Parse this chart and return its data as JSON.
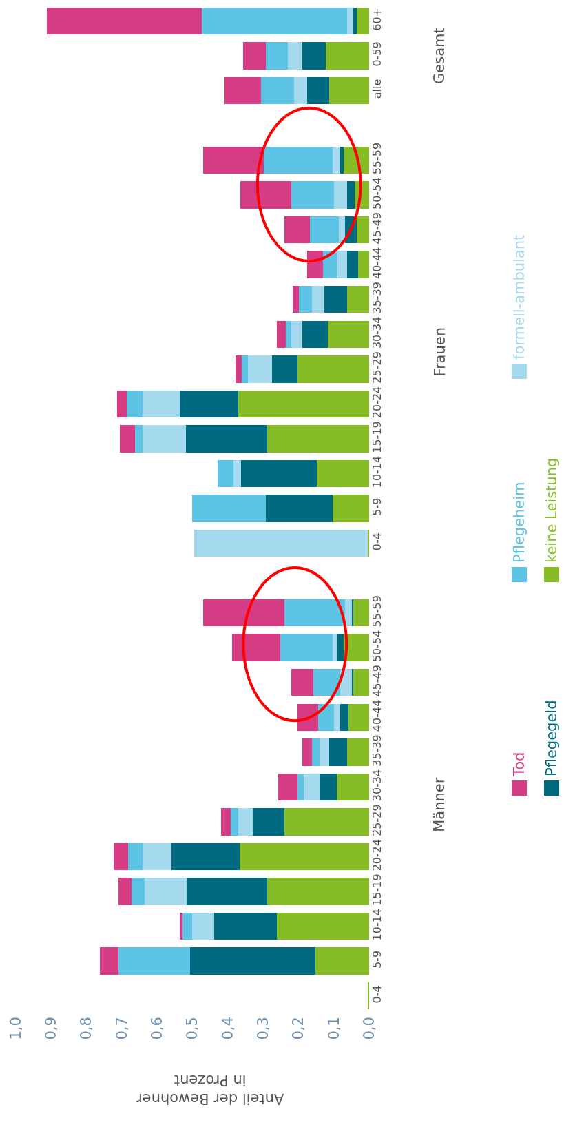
{
  "chart_data": {
    "type": "bar",
    "stacked": true,
    "orientation": "horizontal",
    "xlabel": "Anteil der Bewohner\nin Prozent",
    "categories": [
      "60+",
      "0-59",
      "alle",
      null,
      "55-59",
      "50-54",
      "45-49",
      "40-44",
      "35-39",
      "30-34",
      "25-29",
      "20-24",
      "15-19",
      "10-14",
      "5-9",
      "0-4",
      null,
      "55-59",
      "50-54",
      "45-49",
      "40-44",
      "35-39",
      "30-34",
      "25-29",
      "20-24",
      "15-19",
      "10-14",
      "5-9",
      "0-4"
    ],
    "series": [
      {
        "name": "keine Leistung",
        "color": "#86bc26",
        "values": [
          0.036,
          0.122,
          0.113,
          null,
          0.072,
          0.04,
          0.036,
          0.031,
          0.063,
          0.117,
          0.203,
          0.37,
          0.289,
          0.149,
          0.104,
          0.004,
          null,
          0.045,
          0.072,
          0.045,
          0.059,
          0.063,
          0.091,
          0.239,
          0.366,
          0.289,
          0.262,
          0.153,
          0.004
        ]
      },
      {
        "name": "Pflegegeld",
        "color": "#006b80",
        "values": [
          0.009,
          0.068,
          0.063,
          null,
          0.009,
          0.023,
          0.032,
          0.032,
          0.064,
          0.073,
          0.072,
          0.167,
          0.23,
          0.213,
          0.189,
          0,
          null,
          0.003,
          0.019,
          0.004,
          0.022,
          0.05,
          0.049,
          0.091,
          0.194,
          0.227,
          0.176,
          0.354,
          0
        ]
      },
      {
        "name": "formell-ambulant",
        "color": "#a4d9ee",
        "values": [
          0.018,
          0.04,
          0.036,
          null,
          0.023,
          0.036,
          0.018,
          0.028,
          0.035,
          0.031,
          0.068,
          0.104,
          0.122,
          0.022,
          0,
          0.492,
          null,
          0.02,
          0.013,
          0.032,
          0.018,
          0.027,
          0.045,
          0.04,
          0.081,
          0.12,
          0.063,
          0,
          0
        ]
      },
      {
        "name": "Pflegeheim",
        "color": "#5ec4e6",
        "values": [
          0.411,
          0.063,
          0.095,
          null,
          0.194,
          0.122,
          0.081,
          0.04,
          0.037,
          0.014,
          0.018,
          0.045,
          0.022,
          0.045,
          0.208,
          0,
          null,
          0.171,
          0.148,
          0.077,
          0.045,
          0.022,
          0.018,
          0.022,
          0.041,
          0.036,
          0.027,
          0.202,
          0
        ]
      },
      {
        "name": "Tod",
        "color": "#d63c84",
        "values": [
          0.438,
          0.064,
          0.103,
          null,
          0.172,
          0.144,
          0.072,
          0.045,
          0.018,
          0.027,
          0.018,
          0.028,
          0.042,
          0,
          0,
          0,
          null,
          0.231,
          0.136,
          0.063,
          0.059,
          0.028,
          0.054,
          0.028,
          0.041,
          0.037,
          0.009,
          0.054,
          0
        ]
      }
    ],
    "xlim": [
      1,
      0
    ],
    "xticks": [
      {
        "value": 0,
        "label": "0,0"
      },
      {
        "value": 0.1,
        "label": "0,1"
      },
      {
        "value": 0.2,
        "label": "0,2"
      },
      {
        "value": 0.3,
        "label": "0,3"
      },
      {
        "value": 0.4,
        "label": "0,4"
      },
      {
        "value": 0.5,
        "label": "0,5"
      },
      {
        "value": 0.6,
        "label": "0,6"
      },
      {
        "value": 0.7,
        "label": "0,7"
      },
      {
        "value": 0.8,
        "label": "0,8"
      },
      {
        "value": 0.9,
        "label": "0,9"
      },
      {
        "value": 1,
        "label": "1,0"
      }
    ],
    "annotations": [
      "Gesamt",
      "Frauen",
      "Männer"
    ],
    "legend": "right",
    "grid": false
  }
}
